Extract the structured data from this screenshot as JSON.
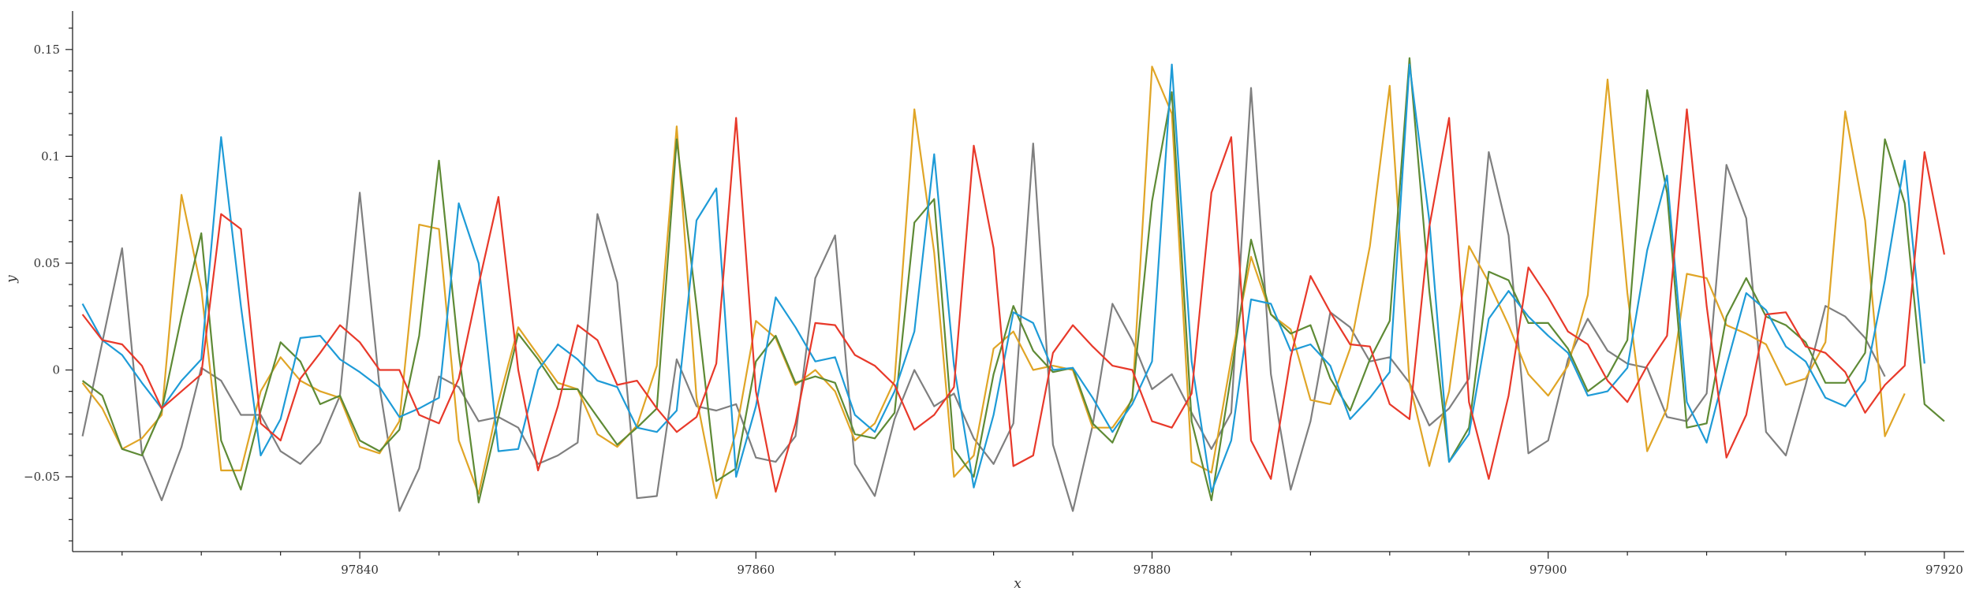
{
  "chart_data": {
    "type": "line",
    "xlabel": "x",
    "ylabel": "y",
    "xlim": [
      97825.5,
      97921
    ],
    "ylim": [
      -0.085,
      0.168
    ],
    "x_start": 97826,
    "x_step": 1,
    "x_ticks": [
      97840,
      97860,
      97880,
      97900,
      97920
    ],
    "x_tick_labels": [
      "97840",
      "97860",
      "97880",
      "97900",
      "97920"
    ],
    "y_ticks": [
      -0.05,
      0,
      0.05,
      0.1,
      0.15
    ],
    "y_tick_labels": [
      "−0.05",
      "0",
      "0.05",
      "0.1",
      "0.15"
    ],
    "grid": false,
    "legend": false,
    "series": [
      {
        "color": "#E8392A",
        "values": [
          0.026,
          0.014,
          0.012,
          0.002,
          -0.018,
          -0.01,
          -0.002,
          0.073,
          0.066,
          -0.025,
          -0.033,
          -0.004,
          0.008,
          0.021,
          0.013,
          0.0,
          0.0,
          -0.021,
          -0.025,
          -0.004,
          0.04,
          0.081,
          0.0,
          -0.047,
          -0.017,
          0.021,
          0.014,
          -0.007,
          -0.005,
          -0.018,
          -0.029,
          -0.022,
          0.003,
          0.118,
          -0.01,
          -0.057,
          -0.025,
          0.022,
          0.021,
          0.007,
          0.002,
          -0.007,
          -0.028,
          -0.021,
          -0.008,
          0.105,
          0.057,
          -0.045,
          -0.04,
          0.008,
          0.021,
          0.011,
          0.002,
          0.0,
          -0.024,
          -0.027,
          -0.011,
          0.083,
          0.109,
          -0.033,
          -0.051,
          0.006,
          0.044,
          0.027,
          0.012,
          0.011,
          -0.016,
          -0.023,
          0.067,
          0.118,
          -0.015,
          -0.051,
          -0.012,
          0.048,
          0.034,
          0.018,
          0.012,
          -0.005,
          -0.015,
          0.002,
          0.016,
          0.122,
          0.03,
          -0.041,
          -0.021,
          0.026,
          0.027,
          0.011,
          0.008,
          -0.001,
          -0.02,
          -0.007,
          0.002,
          0.102,
          0.054
        ]
      },
      {
        "color": "#1E9BD7",
        "values": [
          0.031,
          0.014,
          0.007,
          -0.006,
          -0.018,
          -0.005,
          0.005,
          0.109,
          0.03,
          -0.04,
          -0.023,
          0.015,
          0.016,
          0.005,
          -0.001,
          -0.008,
          -0.022,
          -0.018,
          -0.013,
          0.078,
          0.05,
          -0.038,
          -0.037,
          0.0,
          0.012,
          0.005,
          -0.005,
          -0.008,
          -0.027,
          -0.029,
          -0.019,
          0.07,
          0.085,
          -0.05,
          -0.017,
          0.034,
          0.02,
          0.004,
          0.006,
          -0.021,
          -0.029,
          -0.01,
          0.018,
          0.101,
          0.002,
          -0.055,
          -0.021,
          0.027,
          0.022,
          0.0,
          0.001,
          -0.013,
          -0.029,
          -0.016,
          0.004,
          0.143,
          0.004,
          -0.057,
          -0.033,
          0.033,
          0.031,
          0.009,
          0.012,
          0.002,
          -0.023,
          -0.013,
          -0.001,
          0.143,
          0.07,
          -0.043,
          -0.03,
          0.024,
          0.037,
          0.025,
          0.016,
          0.008,
          -0.012,
          -0.01,
          0.001,
          0.056,
          0.091,
          -0.015,
          -0.034,
          0.002,
          0.036,
          0.028,
          0.011,
          0.004,
          -0.013,
          -0.017,
          -0.005,
          0.042,
          0.098,
          0.003
        ]
      },
      {
        "color": "#E0A526",
        "values": [
          -0.006,
          -0.018,
          -0.037,
          -0.032,
          -0.021,
          0.082,
          0.038,
          -0.047,
          -0.047,
          -0.01,
          0.006,
          -0.005,
          -0.01,
          -0.013,
          -0.036,
          -0.039,
          -0.024,
          0.068,
          0.066,
          -0.033,
          -0.058,
          -0.015,
          0.02,
          0.007,
          -0.006,
          -0.009,
          -0.03,
          -0.036,
          -0.026,
          0.002,
          0.114,
          -0.013,
          -0.06,
          -0.029,
          0.023,
          0.015,
          -0.007,
          0.0,
          -0.01,
          -0.033,
          -0.025,
          -0.005,
          0.122,
          0.055,
          -0.05,
          -0.04,
          0.01,
          0.018,
          0.0,
          0.002,
          0.0,
          -0.027,
          -0.027,
          -0.014,
          0.142,
          0.12,
          -0.043,
          -0.048,
          0.005,
          0.053,
          0.026,
          0.019,
          -0.014,
          -0.016,
          0.01,
          0.058,
          0.133,
          -0.006,
          -0.045,
          -0.01,
          0.058,
          0.041,
          0.021,
          -0.002,
          -0.012,
          0.002,
          0.035,
          0.136,
          0.036,
          -0.038,
          -0.018,
          0.045,
          0.043,
          0.021,
          0.017,
          0.012,
          -0.007,
          -0.004,
          0.013,
          0.121,
          0.07,
          -0.031,
          -0.011
        ]
      },
      {
        "color": "#5E8A35",
        "values": [
          -0.005,
          -0.012,
          -0.037,
          -0.04,
          -0.019,
          0.025,
          0.064,
          -0.033,
          -0.056,
          -0.019,
          0.013,
          0.004,
          -0.016,
          -0.012,
          -0.033,
          -0.038,
          -0.028,
          0.016,
          0.098,
          0.008,
          -0.062,
          -0.022,
          0.017,
          0.005,
          -0.009,
          -0.009,
          -0.022,
          -0.035,
          -0.027,
          -0.018,
          0.108,
          0.03,
          -0.052,
          -0.046,
          0.004,
          0.016,
          -0.006,
          -0.003,
          -0.006,
          -0.03,
          -0.032,
          -0.02,
          0.069,
          0.08,
          -0.037,
          -0.05,
          -0.002,
          0.03,
          0.009,
          -0.001,
          0.001,
          -0.025,
          -0.034,
          -0.013,
          0.079,
          0.13,
          -0.024,
          -0.061,
          -0.002,
          0.061,
          0.026,
          0.017,
          0.021,
          -0.004,
          -0.019,
          0.005,
          0.023,
          0.146,
          0.037,
          -0.043,
          -0.027,
          0.046,
          0.042,
          0.022,
          0.022,
          0.01,
          -0.01,
          -0.003,
          0.014,
          0.131,
          0.083,
          -0.027,
          -0.025,
          0.025,
          0.043,
          0.025,
          0.021,
          0.013,
          -0.006,
          -0.006,
          0.008,
          0.108,
          0.078,
          -0.016,
          -0.024
        ]
      },
      {
        "color": "#7F7F7F",
        "values": [
          -0.031,
          0.013,
          0.057,
          -0.039,
          -0.061,
          -0.036,
          0.001,
          -0.005,
          -0.021,
          -0.021,
          -0.038,
          -0.044,
          -0.034,
          -0.012,
          0.083,
          -0.008,
          -0.066,
          -0.046,
          -0.003,
          -0.008,
          -0.024,
          -0.022,
          -0.027,
          -0.044,
          -0.04,
          -0.034,
          0.073,
          0.041,
          -0.06,
          -0.059,
          0.005,
          -0.017,
          -0.019,
          -0.016,
          -0.041,
          -0.043,
          -0.031,
          0.043,
          0.063,
          -0.044,
          -0.059,
          -0.023,
          0.0,
          -0.017,
          -0.011,
          -0.032,
          -0.044,
          -0.025,
          0.106,
          -0.035,
          -0.066,
          -0.026,
          0.031,
          0.014,
          -0.009,
          -0.002,
          -0.02,
          -0.037,
          -0.02,
          0.132,
          -0.002,
          -0.056,
          -0.024,
          0.027,
          0.02,
          0.004,
          0.006,
          -0.006,
          -0.026,
          -0.018,
          -0.004,
          0.102,
          0.063,
          -0.039,
          -0.033,
          0.005,
          0.024,
          0.009,
          0.003,
          0.001,
          -0.022,
          -0.024,
          -0.011,
          0.096,
          0.071,
          -0.029,
          -0.04,
          -0.007,
          0.03,
          0.025,
          0.015,
          -0.003
        ]
      }
    ]
  }
}
